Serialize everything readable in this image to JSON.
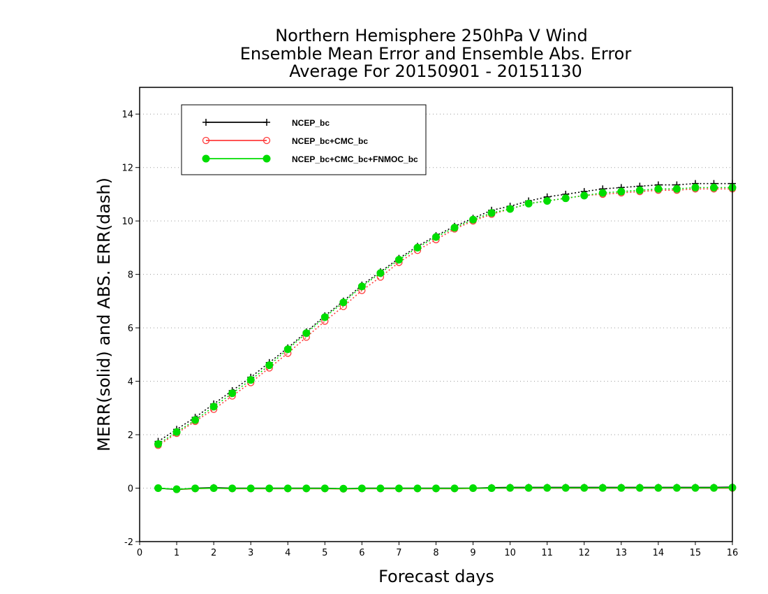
{
  "chart_data": {
    "type": "line",
    "title_lines": [
      "Northern Hemisphere 250hPa V Wind",
      "Ensemble Mean Error and Ensemble Abs. Error",
      "Average For 20150901 - 20151130"
    ],
    "xlabel": "Forecast days",
    "ylabel": "MERR(solid) and ABS. ERR(dash)",
    "xlim": [
      0,
      16
    ],
    "ylim": [
      -2,
      15
    ],
    "x_ticks": [
      "0",
      "1",
      "2",
      "3",
      "4",
      "5",
      "6",
      "7",
      "8",
      "9",
      "10",
      "11",
      "12",
      "13",
      "14",
      "15",
      "16"
    ],
    "y_ticks": [
      "-2",
      "0",
      "2",
      "4",
      "6",
      "8",
      "10",
      "12",
      "14"
    ],
    "grid": "horizontal dotted",
    "legend_position": "top-left",
    "x": [
      0.5,
      1,
      1.5,
      2,
      2.5,
      3,
      3.5,
      4,
      4.5,
      5,
      5.5,
      6,
      6.5,
      7,
      7.5,
      8,
      8.5,
      9,
      9.5,
      10,
      10.5,
      11,
      11.5,
      12,
      12.5,
      13,
      13.5,
      14,
      14.5,
      15,
      15.5,
      16
    ],
    "series": [
      {
        "name": "NCEP_bc",
        "color": "#000000",
        "marker": "plus",
        "abs_err": [
          1.75,
          2.2,
          2.65,
          3.15,
          3.65,
          4.15,
          4.7,
          5.25,
          5.85,
          6.45,
          7.0,
          7.6,
          8.1,
          8.6,
          9.05,
          9.45,
          9.8,
          10.1,
          10.4,
          10.55,
          10.75,
          10.9,
          11.0,
          11.1,
          11.2,
          11.25,
          11.3,
          11.35,
          11.35,
          11.4,
          11.4,
          11.4
        ],
        "mean_err": [
          0.0,
          -0.05,
          0.0,
          0.02,
          0.0,
          0.0,
          0.0,
          0.0,
          0.0,
          0.0,
          -0.02,
          0.0,
          0.0,
          0.0,
          0.0,
          0.0,
          0.0,
          0.0,
          0.02,
          0.03,
          0.03,
          0.03,
          0.03,
          0.03,
          0.03,
          0.03,
          0.03,
          0.03,
          0.03,
          0.03,
          0.03,
          0.04
        ]
      },
      {
        "name": "NCEP_bc+CMC_bc",
        "color": "#ff3b3b",
        "marker": "circle-open",
        "abs_err": [
          1.6,
          2.05,
          2.5,
          2.95,
          3.45,
          3.95,
          4.5,
          5.05,
          5.65,
          6.25,
          6.8,
          7.4,
          7.9,
          8.45,
          8.9,
          9.3,
          9.7,
          10.0,
          10.25,
          10.45,
          10.65,
          10.75,
          10.85,
          10.95,
          11.0,
          11.05,
          11.1,
          11.15,
          11.15,
          11.2,
          11.2,
          11.2
        ],
        "mean_err": [
          0.0,
          -0.05,
          -0.02,
          0.0,
          -0.02,
          -0.02,
          -0.02,
          -0.02,
          -0.02,
          -0.02,
          -0.03,
          -0.02,
          -0.02,
          -0.02,
          -0.02,
          -0.02,
          -0.02,
          -0.01,
          0.0,
          0.0,
          0.0,
          0.0,
          0.0,
          0.0,
          0.0,
          0.0,
          0.0,
          0.0,
          0.0,
          0.0,
          0.0,
          0.0
        ]
      },
      {
        "name": "NCEP_bc+CMC_bc+FNMOC_bc",
        "color": "#00dd00",
        "marker": "circle-filled",
        "abs_err": [
          1.65,
          2.1,
          2.55,
          3.05,
          3.55,
          4.05,
          4.6,
          5.2,
          5.8,
          6.4,
          6.95,
          7.55,
          8.05,
          8.55,
          9.0,
          9.4,
          9.75,
          10.05,
          10.3,
          10.45,
          10.65,
          10.75,
          10.85,
          10.95,
          11.05,
          11.1,
          11.15,
          11.2,
          11.2,
          11.25,
          11.25,
          11.25
        ],
        "mean_err": [
          0.0,
          -0.04,
          -0.01,
          0.0,
          -0.01,
          -0.01,
          -0.01,
          -0.01,
          -0.01,
          -0.01,
          -0.02,
          -0.01,
          -0.01,
          -0.01,
          -0.01,
          -0.01,
          -0.01,
          0.0,
          0.0,
          0.01,
          0.01,
          0.01,
          0.01,
          0.01,
          0.01,
          0.01,
          0.01,
          0.01,
          0.01,
          0.01,
          0.01,
          0.02
        ]
      }
    ]
  }
}
